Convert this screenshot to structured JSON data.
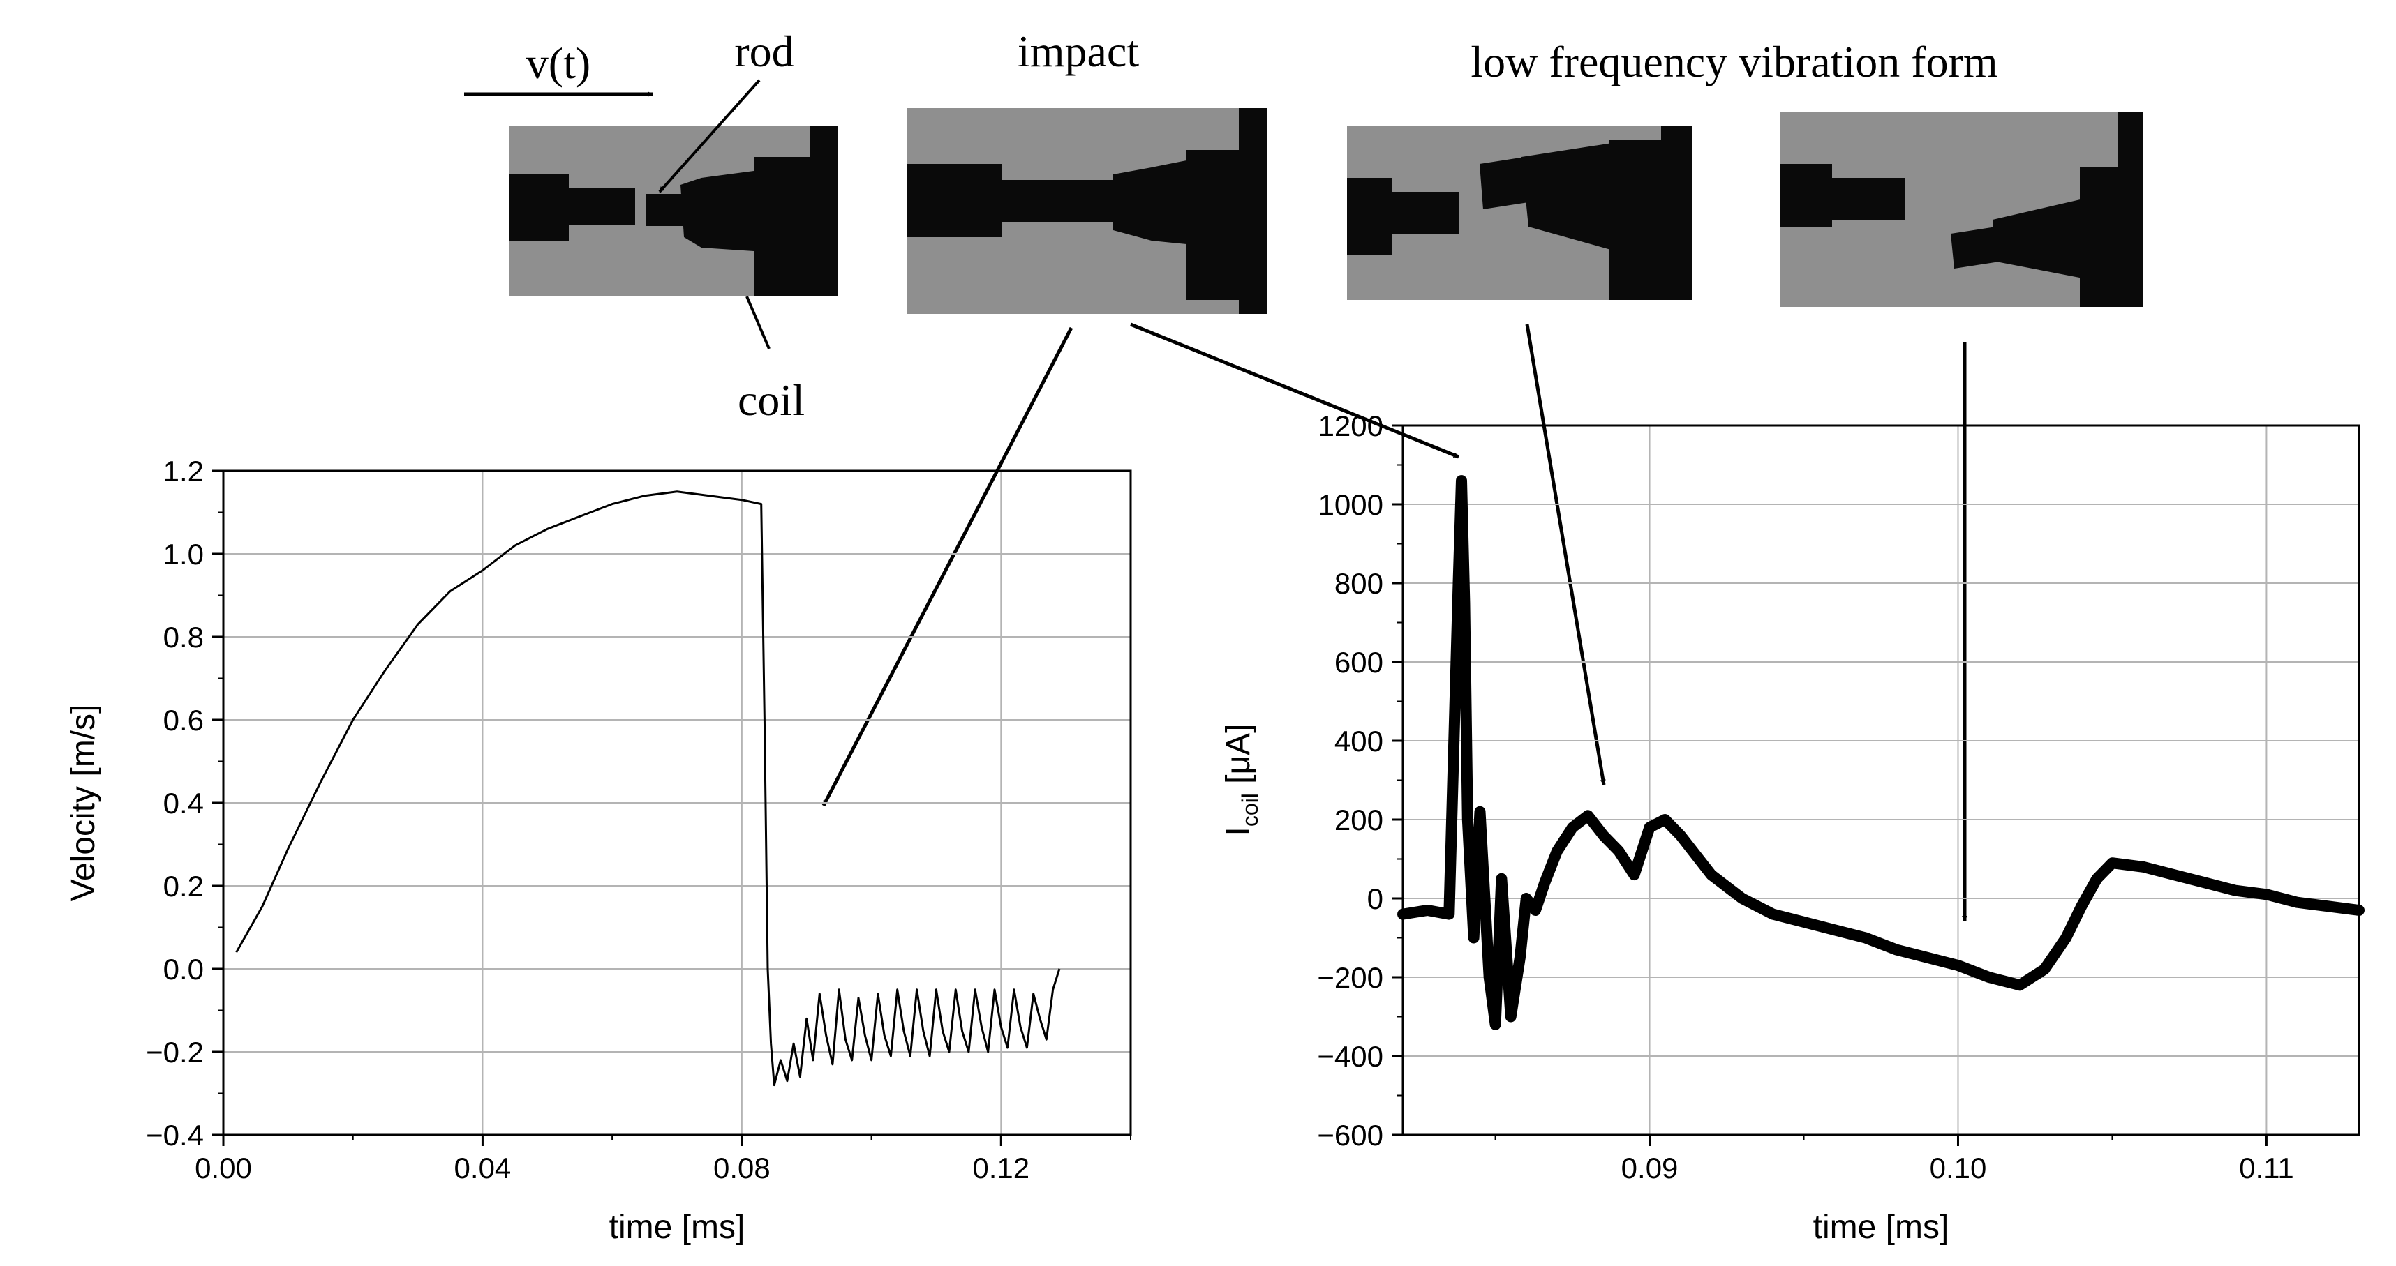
{
  "annotations": {
    "velocity_label": "v(t)",
    "rod_label": "rod",
    "coil_label": "coil",
    "impact_label": "impact",
    "vibration_label": "low frequency vibration form"
  },
  "chart_data": [
    {
      "type": "line",
      "title": "",
      "xlabel": "time [ms]",
      "ylabel": "Velocity [m/s]",
      "xlim": [
        0.0,
        0.14
      ],
      "ylim": [
        -0.4,
        1.2
      ],
      "xticks": [
        0.0,
        0.04,
        0.08,
        0.12
      ],
      "xtick_labels": [
        "0.00",
        "0.04",
        "0.08",
        "0.12"
      ],
      "yticks": [
        -0.4,
        -0.2,
        0.0,
        0.2,
        0.4,
        0.6,
        0.8,
        1.0,
        1.2
      ],
      "ytick_labels": [
        "−0.4",
        "−0.2",
        "0.0",
        "0.2",
        "0.4",
        "0.6",
        "0.8",
        "1.0",
        "1.2"
      ],
      "grid": true,
      "series": [
        {
          "x": [
            0.002,
            0.006,
            0.01,
            0.015,
            0.02,
            0.025,
            0.03,
            0.035,
            0.04,
            0.045,
            0.05,
            0.055,
            0.06,
            0.065,
            0.07,
            0.075,
            0.08,
            0.083,
            0.0835,
            0.084,
            0.0845,
            0.085,
            0.086,
            0.087,
            0.088,
            0.089,
            0.09,
            0.091,
            0.092,
            0.093,
            0.094,
            0.095,
            0.096,
            0.097,
            0.098,
            0.099,
            0.1,
            0.101,
            0.102,
            0.103,
            0.104,
            0.105,
            0.106,
            0.107,
            0.108,
            0.109,
            0.11,
            0.111,
            0.112,
            0.113,
            0.114,
            0.115,
            0.116,
            0.117,
            0.118,
            0.119,
            0.12,
            0.121,
            0.122,
            0.123,
            0.124,
            0.125,
            0.126,
            0.127,
            0.128,
            0.129
          ],
          "y": [
            0.04,
            0.15,
            0.29,
            0.45,
            0.6,
            0.72,
            0.83,
            0.91,
            0.96,
            1.02,
            1.06,
            1.09,
            1.12,
            1.14,
            1.15,
            1.14,
            1.13,
            1.12,
            0.6,
            0.0,
            -0.18,
            -0.28,
            -0.22,
            -0.27,
            -0.18,
            -0.26,
            -0.12,
            -0.22,
            -0.06,
            -0.16,
            -0.23,
            -0.05,
            -0.17,
            -0.22,
            -0.07,
            -0.16,
            -0.22,
            -0.06,
            -0.16,
            -0.21,
            -0.05,
            -0.15,
            -0.21,
            -0.05,
            -0.15,
            -0.21,
            -0.05,
            -0.15,
            -0.2,
            -0.05,
            -0.15,
            -0.2,
            -0.05,
            -0.14,
            -0.2,
            -0.05,
            -0.14,
            -0.19,
            -0.05,
            -0.14,
            -0.19,
            -0.06,
            -0.12,
            -0.17,
            -0.05,
            0.0
          ]
        }
      ]
    },
    {
      "type": "line",
      "title": "",
      "xlabel": "time [ms]",
      "ylabel": "I",
      "ylabel_sub": "coil",
      "ylabel_unit": " [μA]",
      "xlim": [
        0.082,
        0.113
      ],
      "ylim": [
        -600,
        1200
      ],
      "xticks": [
        0.09,
        0.1,
        0.11
      ],
      "xtick_labels": [
        "0.09",
        "0.10",
        "0.11"
      ],
      "yticks": [
        -600,
        -400,
        -200,
        0,
        200,
        400,
        600,
        800,
        1000,
        1200
      ],
      "ytick_labels": [
        "−600",
        "−400",
        "−200",
        "0",
        "200",
        "400",
        "600",
        "800",
        "1000",
        "1200"
      ],
      "grid": true,
      "series": [
        {
          "x": [
            0.082,
            0.0828,
            0.0835,
            0.0838,
            0.0839,
            0.084,
            0.0841,
            0.0843,
            0.0845,
            0.0848,
            0.085,
            0.0852,
            0.0855,
            0.0858,
            0.086,
            0.0863,
            0.0866,
            0.087,
            0.0875,
            0.088,
            0.0885,
            0.089,
            0.0895,
            0.09,
            0.0905,
            0.091,
            0.0915,
            0.092,
            0.093,
            0.094,
            0.095,
            0.096,
            0.097,
            0.098,
            0.099,
            0.1,
            0.101,
            0.102,
            0.1028,
            0.1035,
            0.104,
            0.1045,
            0.105,
            0.106,
            0.107,
            0.108,
            0.109,
            0.11,
            0.111,
            0.112,
            0.113
          ],
          "y": [
            -40,
            -30,
            -40,
            800,
            1060,
            750,
            200,
            -100,
            220,
            -200,
            -320,
            50,
            -300,
            -150,
            0,
            -30,
            40,
            120,
            180,
            210,
            160,
            120,
            60,
            180,
            200,
            160,
            110,
            60,
            0,
            -40,
            -60,
            -80,
            -100,
            -130,
            -150,
            -170,
            -200,
            -220,
            -180,
            -100,
            -20,
            50,
            90,
            80,
            60,
            40,
            20,
            10,
            -10,
            -20,
            -30
          ]
        }
      ]
    }
  ]
}
